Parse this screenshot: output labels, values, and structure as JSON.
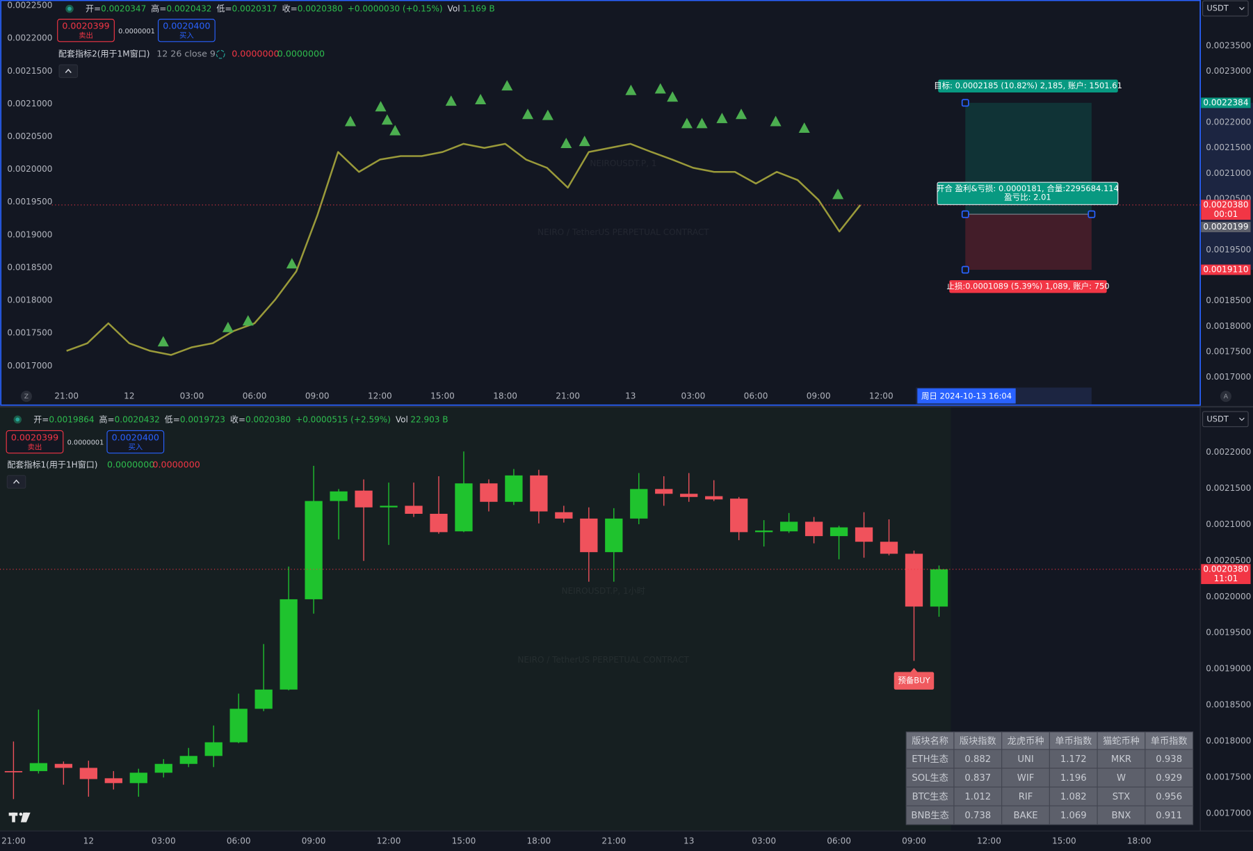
{
  "top_pane": {
    "header": {
      "open_label": "开=",
      "open": "0.0020347",
      "high_label": "高=",
      "high": "0.0020432",
      "low_label": "低=",
      "low": "0.0020317",
      "close_label": "收=",
      "close": "0.0020380",
      "change": "+0.0000030 (+0.15%)",
      "vol_label": "Vol",
      "vol": "1.169 B"
    },
    "sell": {
      "price": "0.0020399",
      "label": "卖出"
    },
    "spread": "0.0000001",
    "buy": {
      "price": "0.0020400",
      "label": "买入"
    },
    "indicator": {
      "name": "配套指标2(用于1M窗口)",
      "params": "12 26 close 9",
      "values": [
        "0.0000000",
        "0.0000000"
      ]
    },
    "watermark": {
      "title": "NEIROUSDT.P, 1",
      "subtitle": "NEIRO / TetherUS PERPETUAL CONTRACT"
    },
    "currency": "USDT",
    "axis_buttons": [
      "Z",
      "A"
    ],
    "chart": {
      "type": "line",
      "series": [
        {
          "color": "#9a9a3a",
          "values": [
            0.001752,
            0.001767,
            0.001806,
            0.001767,
            0.001752,
            0.001744,
            0.001759,
            0.001767,
            0.001791,
            0.001806,
            0.001853,
            0.001908,
            0.002017,
            0.002142,
            0.002103,
            0.002127,
            0.002134,
            0.002134,
            0.002142,
            0.002158,
            0.00215,
            0.002158,
            0.002127,
            0.002111,
            0.002072,
            0.002142,
            0.00215,
            0.002158,
            0.002142,
            0.002127,
            0.002111,
            0.002103,
            0.002103,
            0.00208,
            0.002103,
            0.002087,
            0.002048,
            0.001986,
            0.002038
          ]
        }
      ],
      "markers": {
        "color": "#4caf50",
        "x": [
          13.59,
          15.04,
          15.35,
          15.73,
          18.41,
          19.82,
          21.09,
          22.08,
          23.04,
          23.92,
          24.8,
          27.02,
          28.43,
          29.01,
          29.7,
          30.42,
          31.38,
          32.3,
          33.95,
          35.32,
          36.93,
          4.63,
          7.73,
          8.69,
          10.79
        ],
        "values": [
          0.002202,
          0.002231,
          0.002205,
          0.002184,
          0.002242,
          0.002245,
          0.002272,
          0.002216,
          0.002214,
          0.002159,
          0.002163,
          0.002263,
          0.002266,
          0.00225,
          0.002198,
          0.002198,
          0.002208,
          0.002216,
          0.002202,
          0.002189,
          0.002059,
          0.00177,
          0.001798,
          0.001811,
          0.001923
        ]
      },
      "xlim": [
        -0.7,
        54.2
      ],
      "xticks": [
        {
          "value": 0,
          "label": "21:00"
        },
        {
          "value": 3,
          "label": "12"
        },
        {
          "value": 6,
          "label": "03:00"
        },
        {
          "value": 9,
          "label": "06:00"
        },
        {
          "value": 12,
          "label": "09:00"
        },
        {
          "value": 15,
          "label": "12:00"
        },
        {
          "value": 18,
          "label": "15:00"
        },
        {
          "value": 21,
          "label": "18:00"
        },
        {
          "value": 24,
          "label": "21:00"
        },
        {
          "value": 27,
          "label": "13"
        },
        {
          "value": 30,
          "label": "03:00"
        },
        {
          "value": 33,
          "label": "06:00"
        },
        {
          "value": 36,
          "label": "09:00"
        },
        {
          "value": 39,
          "label": "12:00"
        }
      ],
      "ylim": [
        0.00168,
        0.00244
      ],
      "yticks": [
        {
          "value": 0.00235,
          "label": "0.0023500"
        },
        {
          "value": 0.0023,
          "label": "0.0023000"
        },
        {
          "value": 0.0022,
          "label": "0.0022000"
        },
        {
          "value": 0.00215,
          "label": "0.0021500"
        },
        {
          "value": 0.0021,
          "label": "0.0021000"
        },
        {
          "value": 0.00205,
          "label": "0.0020500"
        },
        {
          "value": 0.00195,
          "label": "0.0019500"
        },
        {
          "value": 0.00185,
          "label": "0.0018500"
        },
        {
          "value": 0.0018,
          "label": "0.0018000"
        },
        {
          "value": 0.00175,
          "label": "0.0017500"
        },
        {
          "value": 0.0017,
          "label": "0.0017000"
        }
      ],
      "left_ylim": [
        0.001667,
        0.0022585
      ],
      "left_yticks": [
        {
          "value": 0.00225,
          "label": "0.0022500"
        },
        {
          "value": 0.0022,
          "label": "0.0022000"
        },
        {
          "value": 0.00215,
          "label": "0.0021500"
        },
        {
          "value": 0.0021,
          "label": "0.0021000"
        },
        {
          "value": 0.00205,
          "label": "0.0020500"
        },
        {
          "value": 0.002,
          "label": "0.0020000"
        },
        {
          "value": 0.00195,
          "label": "0.0019500"
        },
        {
          "value": 0.0019,
          "label": "0.0019000"
        },
        {
          "value": 0.00185,
          "label": "0.0018500"
        },
        {
          "value": 0.0018,
          "label": "0.0018000"
        },
        {
          "value": 0.00175,
          "label": "0.0017500"
        },
        {
          "value": 0.0017,
          "label": "0.0017000"
        }
      ],
      "last_price": {
        "value": 0.002038,
        "label": "0.0020380",
        "countdown": "00:01"
      },
      "position": {
        "target": {
          "value": 0.0022384,
          "label": "0.0022384"
        },
        "entry": {
          "value": 0.0020199,
          "label": "0.0020199"
        },
        "stop": {
          "value": 0.001911,
          "label": "0.0019110"
        },
        "target_text": "目标: 0.0002185 (10.82%) 2,185, 账户: 1501.61",
        "entry_text": [
          "开合 盈利&亏损: 0.0000181, 合量:2295684.114",
          "盈亏比: 2.01"
        ],
        "stop_text": "止损:0.0001089 (5.39%) 1,089, 账户: 750"
      },
      "cursor_time": "周日 2024-10-13   16:04"
    }
  },
  "bottom_pane": {
    "header": {
      "open_label": "开=",
      "open": "0.0019864",
      "high_label": "高=",
      "high": "0.0020432",
      "low_label": "低=",
      "low": "0.0019723",
      "close_label": "收=",
      "close": "0.0020380",
      "change": "+0.0000515 (+2.59%)",
      "vol_label": "Vol",
      "vol": "22.903 B"
    },
    "sell": {
      "price": "0.0020399",
      "label": "卖出"
    },
    "spread": "0.0000001",
    "buy": {
      "price": "0.0020400",
      "label": "买入"
    },
    "indicator": {
      "name": "配套指标1(用于1H窗口)",
      "values": [
        "0.0000000",
        "0.0000000"
      ]
    },
    "watermark": {
      "title": "NEIROUSDT.P, 1小时",
      "subtitle": "NEIRO / TetherUS PERPETUAL CONTRACT"
    },
    "currency": "USDT",
    "annotation": "预备BUY",
    "chart": {
      "type": "candlestick",
      "up_color": "#1fc32e",
      "down_color": "#f0525c",
      "open": [
        0.0017586,
        0.0017586,
        0.0017686,
        0.0017631,
        0.0017487,
        0.001742,
        0.0017564,
        0.0017686,
        0.0017796,
        0.0017985,
        0.0018449,
        0.0018715,
        0.0019965,
        0.0021325,
        0.0021469,
        0.0021237,
        0.0021259,
        0.0021148,
        0.0020905,
        0.0021569,
        0.0021314,
        0.0021679,
        0.002117,
        0.0021082,
        0.0020617,
        0.0021082,
        0.0021491,
        0.0021425,
        0.0021392,
        0.0021358,
        0.0020894,
        0.0020905,
        0.0021038,
        0.0020839,
        0.002096,
        0.0020761,
        0.0020595,
        0.0019864
      ],
      "high": [
        0.0017996,
        0.0018438,
        0.0017719,
        0.001773,
        0.0017586,
        0.0017619,
        0.0017752,
        0.0017907,
        0.0018217,
        0.0018659,
        0.0019345,
        0.0020418,
        0.0021812,
        0.0021491,
        0.0021624,
        0.002158,
        0.002158,
        0.0021668,
        0.0022011,
        0.0021624,
        0.0021768,
        0.0021757,
        0.0021259,
        0.0021237,
        0.0021226,
        0.0021712,
        0.0021668,
        0.0021712,
        0.0021613,
        0.0021381,
        0.002106,
        0.0021159,
        0.0021104,
        0.0020982,
        0.002117,
        0.0021071,
        0.0020639,
        0.0020432
      ],
      "low": [
        0.0017199,
        0.0017553,
        0.0017398,
        0.0017232,
        0.0017332,
        0.0017232,
        0.0017498,
        0.0017642,
        0.0017642,
        0.0017973,
        0.0018416,
        0.0018704,
        0.0019766,
        0.0020794,
        0.0020496,
        0.0020717,
        0.0021104,
        0.0020872,
        0.0020894,
        0.0021181,
        0.002127,
        0.0021015,
        0.0021027,
        0.0020208,
        0.0020208,
        0.0021004,
        0.0021259,
        0.0021314,
        0.0021325,
        0.0020783,
        0.0020695,
        0.0020883,
        0.0020739,
        0.0020518,
        0.002054,
        0.0020573,
        0.0019113,
        0.0019723
      ],
      "close": [
        0.0017586,
        0.0017697,
        0.0017631,
        0.0017476,
        0.001742,
        0.0017564,
        0.0017686,
        0.0017796,
        0.0017985,
        0.0018449,
        0.0018715,
        0.0019965,
        0.0021325,
        0.0021458,
        0.0021237,
        0.0021259,
        0.0021148,
        0.0020894,
        0.0021569,
        0.0021314,
        0.0021679,
        0.0021181,
        0.0021082,
        0.0020617,
        0.0021082,
        0.0021491,
        0.0021425,
        0.0021381,
        0.0021347,
        0.0020894,
        0.0020916,
        0.0021038,
        0.0020839,
        0.002096,
        0.0020761,
        0.0020595,
        0.0019864,
        0.002038
      ],
      "xlim": [
        -0.54,
        47.38
      ],
      "xticks": [
        {
          "value": 0,
          "label": "21:00"
        },
        {
          "value": 3,
          "label": "12"
        },
        {
          "value": 6,
          "label": "03:00"
        },
        {
          "value": 9,
          "label": "06:00"
        },
        {
          "value": 12,
          "label": "09:00"
        },
        {
          "value": 15,
          "label": "12:00"
        },
        {
          "value": 18,
          "label": "15:00"
        },
        {
          "value": 21,
          "label": "18:00"
        },
        {
          "value": 24,
          "label": "21:00"
        },
        {
          "value": 27,
          "label": "13"
        },
        {
          "value": 30,
          "label": "03:00"
        },
        {
          "value": 33,
          "label": "06:00"
        },
        {
          "value": 36,
          "label": "09:00"
        },
        {
          "value": 39,
          "label": "12:00"
        },
        {
          "value": 42,
          "label": "15:00"
        },
        {
          "value": 45,
          "label": "18:00"
        }
      ],
      "ylim": [
        0.0016757,
        0.0022597
      ],
      "yticks": [
        {
          "value": 0.0022,
          "label": "0.0022000"
        },
        {
          "value": 0.00215,
          "label": "0.0021500"
        },
        {
          "value": 0.0021,
          "label": "0.0021000"
        },
        {
          "value": 0.00205,
          "label": "0.0020500"
        },
        {
          "value": 0.002,
          "label": "0.0020000"
        },
        {
          "value": 0.00195,
          "label": "0.0019500"
        },
        {
          "value": 0.0019,
          "label": "0.0019000"
        },
        {
          "value": 0.00185,
          "label": "0.0018500"
        },
        {
          "value": 0.0018,
          "label": "0.0018000"
        },
        {
          "value": 0.00175,
          "label": "0.0017500"
        },
        {
          "value": 0.0017,
          "label": "0.0017000"
        }
      ],
      "last_price": {
        "value": 0.002038,
        "label": "0.0020380",
        "countdown": "11:01"
      }
    }
  },
  "table": {
    "header": [
      "版块名称",
      "版块指数",
      "龙虎币种",
      "单币指数",
      "猫蛇币种",
      "单币指数"
    ],
    "rows": [
      [
        "ETH生态",
        "0.882",
        "UNI",
        "1.172",
        "MKR",
        "0.938"
      ],
      [
        "SOL生态",
        "0.837",
        "WIF",
        "1.196",
        "W",
        "0.929"
      ],
      [
        "BTC生态",
        "1.012",
        "RIF",
        "1.082",
        "STX",
        "0.956"
      ],
      [
        "BNB生态",
        "0.738",
        "BAKE",
        "1.069",
        "BNX",
        "0.911"
      ]
    ]
  }
}
